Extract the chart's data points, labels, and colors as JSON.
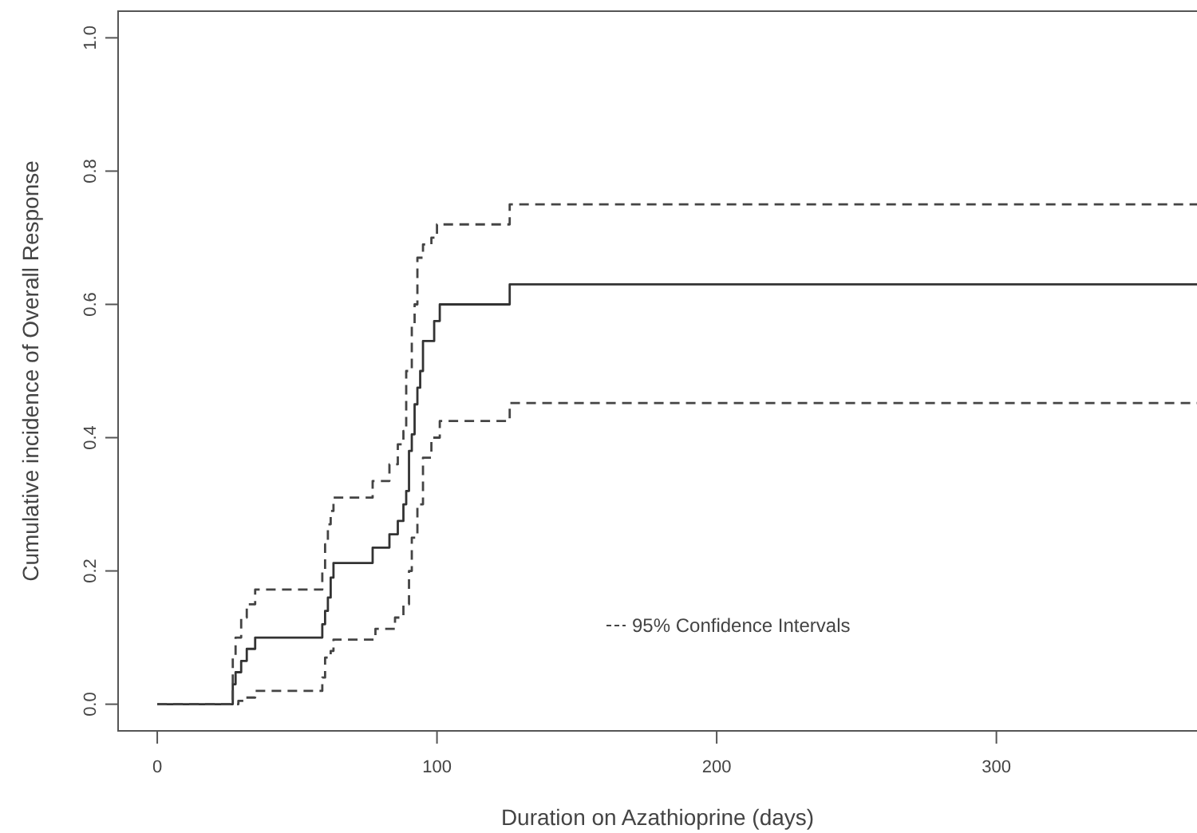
{
  "chart_data": {
    "type": "step",
    "xlabel": "Duration on Azathioprine (days)",
    "ylabel": "Cumulative incidence of Overall Response",
    "xlim": [
      -14,
      374
    ],
    "ylim": [
      -0.04,
      1.04
    ],
    "xticks": [
      0,
      100,
      200,
      300
    ],
    "yticks": [
      {
        "value": 0,
        "label": "0.0"
      },
      0.2,
      0.4,
      0.6,
      0.8,
      {
        "value": 1,
        "label": "1.0"
      }
    ],
    "grid": false,
    "legend": "bottom",
    "series": [
      {
        "color": "#333333",
        "line_style": "solid",
        "x": [
          0,
          27,
          28,
          30,
          32,
          35,
          59,
          60,
          61,
          62,
          63,
          77,
          83,
          86,
          88,
          89,
          90,
          91,
          92,
          93,
          94,
          95,
          99,
          101,
          126,
          374
        ],
        "values": [
          0,
          0.03,
          0.048,
          0.065,
          0.083,
          0.1,
          0.12,
          0.14,
          0.16,
          0.19,
          0.212,
          0.235,
          0.255,
          0.275,
          0.3,
          0.32,
          0.38,
          0.405,
          0.45,
          0.475,
          0.5,
          0.545,
          0.575,
          0.6,
          0.63,
          0.63
        ]
      },
      {
        "name": "95% Confidence Intervals",
        "color": "#444444",
        "line_style": "dashed",
        "x": [
          0,
          27,
          28,
          30,
          32,
          35,
          59,
          60,
          61,
          62,
          63,
          77,
          83,
          86,
          88,
          89,
          91,
          92,
          93,
          95,
          98,
          100,
          126,
          374
        ],
        "values": [
          0,
          0.07,
          0.1,
          0.13,
          0.15,
          0.172,
          0.2,
          0.24,
          0.27,
          0.29,
          0.31,
          0.335,
          0.36,
          0.39,
          0.41,
          0.5,
          0.57,
          0.6,
          0.67,
          0.69,
          0.7,
          0.72,
          0.75,
          0.75
        ]
      },
      {
        "color": "#444444",
        "line_style": "dashed",
        "x": [
          0,
          29,
          31,
          35,
          59,
          60,
          62,
          63,
          78,
          85,
          88,
          90,
          91,
          93,
          95,
          98,
          101,
          126,
          374
        ],
        "values": [
          0,
          0.005,
          0.01,
          0.02,
          0.04,
          0.07,
          0.08,
          0.097,
          0.113,
          0.13,
          0.15,
          0.2,
          0.25,
          0.3,
          0.37,
          0.4,
          0.425,
          0.452,
          0.452
        ]
      }
    ]
  }
}
